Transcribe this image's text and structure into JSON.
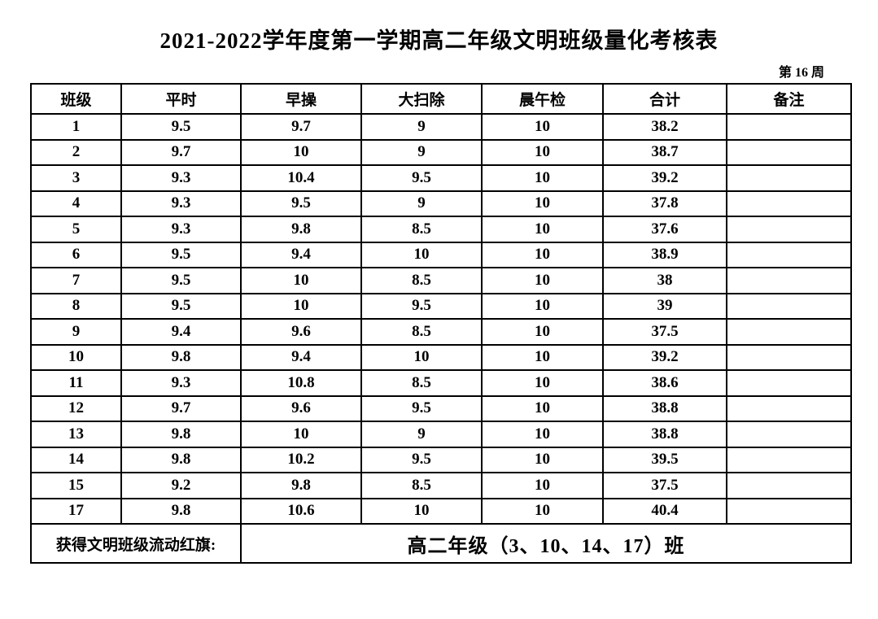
{
  "page": {
    "title": "2021-2022学年度第一学期高二年级文明班级量化考核表",
    "week_label": "第 16 周"
  },
  "table": {
    "headers": [
      "班级",
      "平时",
      "早操",
      "大扫除",
      "晨午检",
      "合计",
      "备注"
    ],
    "rows": [
      [
        "1",
        "9.5",
        "9.7",
        "9",
        "10",
        "38.2",
        ""
      ],
      [
        "2",
        "9.7",
        "10",
        "9",
        "10",
        "38.7",
        ""
      ],
      [
        "3",
        "9.3",
        "10.4",
        "9.5",
        "10",
        "39.2",
        ""
      ],
      [
        "4",
        "9.3",
        "9.5",
        "9",
        "10",
        "37.8",
        ""
      ],
      [
        "5",
        "9.3",
        "9.8",
        "8.5",
        "10",
        "37.6",
        ""
      ],
      [
        "6",
        "9.5",
        "9.4",
        "10",
        "10",
        "38.9",
        ""
      ],
      [
        "7",
        "9.5",
        "10",
        "8.5",
        "10",
        "38",
        ""
      ],
      [
        "8",
        "9.5",
        "10",
        "9.5",
        "10",
        "39",
        ""
      ],
      [
        "9",
        "9.4",
        "9.6",
        "8.5",
        "10",
        "37.5",
        ""
      ],
      [
        "10",
        "9.8",
        "9.4",
        "10",
        "10",
        "39.2",
        ""
      ],
      [
        "11",
        "9.3",
        "10.8",
        "8.5",
        "10",
        "38.6",
        ""
      ],
      [
        "12",
        "9.7",
        "9.6",
        "9.5",
        "10",
        "38.8",
        ""
      ],
      [
        "13",
        "9.8",
        "10",
        "9",
        "10",
        "38.8",
        ""
      ],
      [
        "14",
        "9.8",
        "10.2",
        "9.5",
        "10",
        "39.5",
        ""
      ],
      [
        "15",
        "9.2",
        "9.8",
        "8.5",
        "10",
        "37.5",
        ""
      ],
      [
        "17",
        "9.8",
        "10.6",
        "10",
        "10",
        "40.4",
        ""
      ]
    ],
    "footer": {
      "label": "获得文明班级流动红旗:",
      "value": "高二年级（3、10、14、17）班"
    }
  },
  "colors": {
    "text": "#000000",
    "border": "#000000",
    "background": "#ffffff"
  }
}
